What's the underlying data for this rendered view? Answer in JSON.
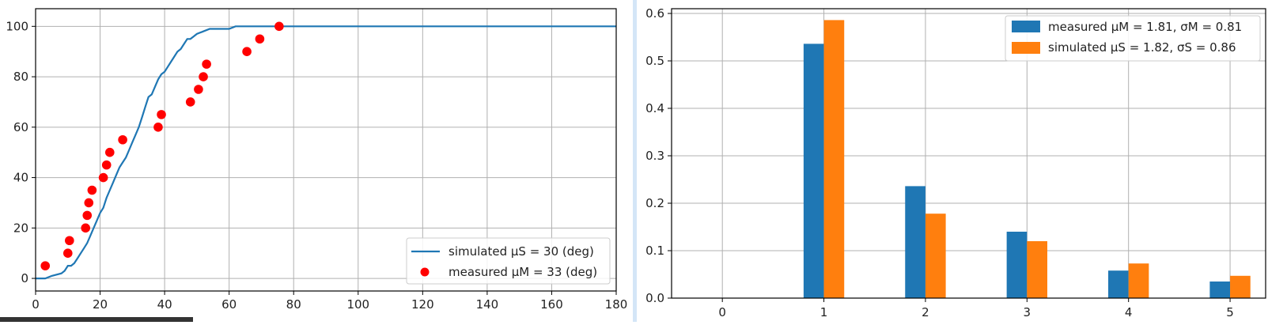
{
  "colors": {
    "blue": "#1f77b4",
    "orange": "#ff7f0e",
    "red": "#ff0000"
  },
  "chart_data": [
    {
      "type": "line",
      "xlim": [
        0,
        180
      ],
      "ylim": [
        -5,
        107
      ],
      "xticks": [
        0,
        20,
        40,
        60,
        80,
        100,
        120,
        140,
        160,
        180
      ],
      "yticks": [
        0,
        20,
        40,
        60,
        80,
        100
      ],
      "grid": true,
      "legend_position": "lower-right",
      "series": [
        {
          "name": "simulated μS = 30 (deg)",
          "kind": "line",
          "x": [
            0,
            3,
            5,
            8,
            9,
            10,
            11,
            12,
            13,
            14,
            15,
            16,
            17,
            18,
            19,
            20,
            21,
            22,
            23,
            24,
            25,
            26,
            27,
            28,
            29,
            30,
            31,
            32,
            33,
            34,
            35,
            36,
            37,
            38,
            39,
            40,
            41,
            42,
            43,
            44,
            45,
            46,
            47,
            48,
            49,
            50,
            52,
            54,
            56,
            58,
            60,
            62,
            70,
            80,
            180
          ],
          "y": [
            0,
            0,
            1,
            2,
            3,
            5,
            5,
            6,
            8,
            10,
            12,
            14,
            17,
            20,
            23,
            26,
            28,
            32,
            35,
            38,
            41,
            44,
            46,
            48,
            51,
            54,
            57,
            60,
            64,
            68,
            72,
            73,
            76,
            79,
            81,
            82,
            84,
            86,
            88,
            90,
            91,
            93,
            95,
            95,
            96,
            97,
            98,
            99,
            99,
            99,
            99,
            100,
            100,
            100,
            100
          ]
        },
        {
          "name": "measured μM = 33 (deg)",
          "kind": "scatter",
          "x": [
            3,
            10,
            10.5,
            15.5,
            16,
            16.5,
            17.5,
            21,
            22,
            23,
            27,
            38,
            39,
            48,
            50.5,
            52,
            53,
            65.5,
            69.5,
            75.5
          ],
          "y": [
            5,
            10,
            15,
            20,
            25,
            30,
            35,
            40,
            45,
            50,
            55,
            60,
            65,
            70,
            75,
            80,
            85,
            90,
            95,
            100
          ]
        }
      ]
    },
    {
      "type": "bar",
      "xlim": [
        -0.5,
        5.35
      ],
      "ylim": [
        0,
        0.61
      ],
      "xticks": [
        0,
        1,
        2,
        3,
        4,
        5
      ],
      "yticks": [
        "0.0",
        "0.1",
        "0.2",
        "0.3",
        "0.4",
        "0.5",
        "0.6"
      ],
      "grid": true,
      "legend_position": "upper-right",
      "categories": [
        0,
        1,
        2,
        3,
        4,
        5
      ],
      "series": [
        {
          "name": "measured μM = 1.81, σM = 0.81",
          "values": [
            0,
            0.536,
            0.236,
            0.14,
            0.058,
            0.035
          ]
        },
        {
          "name": "simulated μS = 1.82, σS = 0.86",
          "values": [
            0,
            0.586,
            0.178,
            0.12,
            0.073,
            0.047
          ]
        }
      ]
    }
  ]
}
